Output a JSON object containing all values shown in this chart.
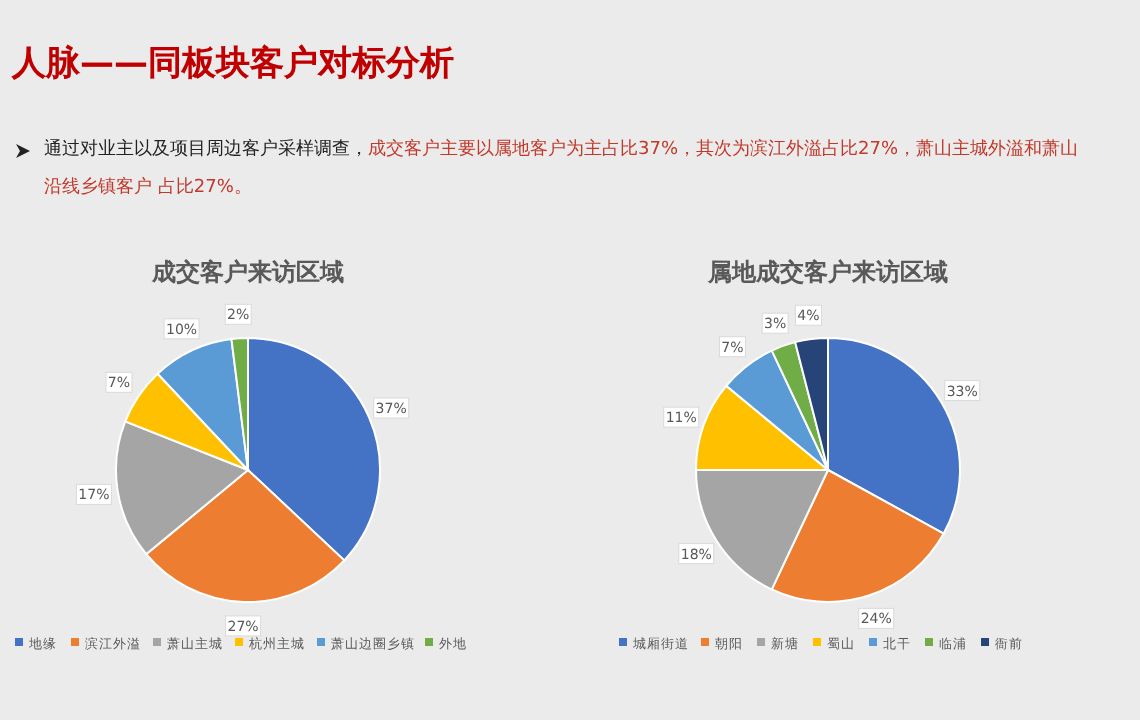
{
  "chart_data": [
    {
      "type": "pie",
      "title": "成交客户来访区域",
      "categories": [
        "地缘",
        "滨江外溢",
        "萧山主城",
        "杭州主城",
        "萧山边圈乡镇",
        "外地"
      ],
      "values": [
        37,
        27,
        17,
        7,
        10,
        2
      ],
      "colors": [
        "#4472c4",
        "#ed7d31",
        "#a5a5a5",
        "#ffc000",
        "#5b9bd5",
        "#70ad47"
      ],
      "value_labels": [
        "37%",
        "27%",
        "17%",
        "7%",
        "10%",
        "2%"
      ],
      "legend": "bottom",
      "annotations": [
        "人脉——同板块客户对标分析",
        "通过对业主以及项目周边客户采样调查，",
        "成交客户主要以属地客户为主占比37%，其次为滨江外溢占比27%，萧山主城外溢和萧山沿线乡镇客户 占比27%。"
      ]
    },
    {
      "type": "pie",
      "title": "属地成交客户来访区域",
      "categories": [
        "城厢街道",
        "朝阳",
        "新塘",
        "蜀山",
        "北干",
        "临浦",
        "衙前"
      ],
      "values": [
        33,
        24,
        18,
        11,
        7,
        3,
        4
      ],
      "colors": [
        "#4472c4",
        "#ed7d31",
        "#a5a5a5",
        "#ffc000",
        "#5b9bd5",
        "#70ad47",
        "#264478"
      ],
      "value_labels": [
        "33%",
        "24%",
        "18%",
        "11%",
        "7%",
        "3%",
        "4%"
      ],
      "legend": "bottom"
    }
  ]
}
